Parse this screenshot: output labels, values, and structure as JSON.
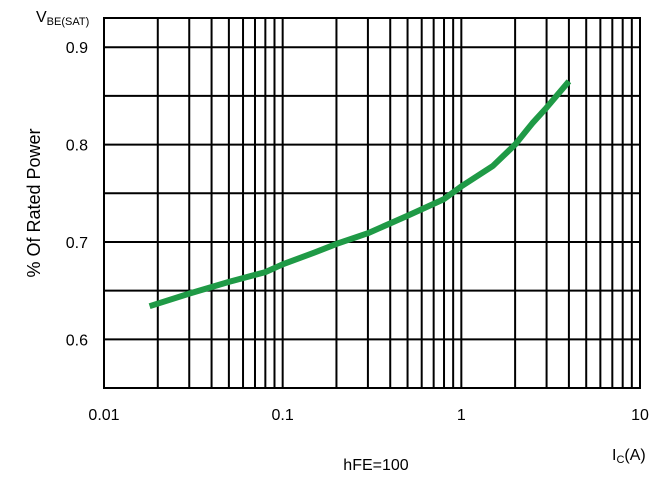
{
  "chart_data": {
    "type": "line",
    "ylabel": "% Of Rated Power",
    "y_corner_label": {
      "main": "V",
      "sub": "BE(SAT)"
    },
    "xlabel": {
      "main": "I",
      "sub": "C",
      "suffix": "(A)"
    },
    "note": "hFE=100",
    "x_scale": "log",
    "xlim": [
      0.01,
      10
    ],
    "ylim": [
      0.55,
      0.93
    ],
    "x_ticks": [
      0.01,
      0.1,
      1,
      10
    ],
    "x_tick_labels": [
      "0.01",
      "0.1",
      "1",
      "10"
    ],
    "y_ticks": [
      0.6,
      0.7,
      0.8,
      0.9
    ],
    "y_tick_labels": [
      "0.6",
      "0.7",
      "0.8",
      "0.9"
    ],
    "grid": true,
    "series": [
      {
        "color": "#1f9a46",
        "x": [
          0.018,
          0.03,
          0.05,
          0.08,
          0.1,
          0.15,
          0.2,
          0.3,
          0.5,
          0.8,
          1.0,
          1.5,
          2.0,
          2.5,
          3.0,
          4.0
        ],
        "y": [
          0.634,
          0.647,
          0.659,
          0.669,
          0.677,
          0.689,
          0.698,
          0.709,
          0.727,
          0.744,
          0.757,
          0.778,
          0.8,
          0.822,
          0.838,
          0.865
        ]
      }
    ]
  }
}
